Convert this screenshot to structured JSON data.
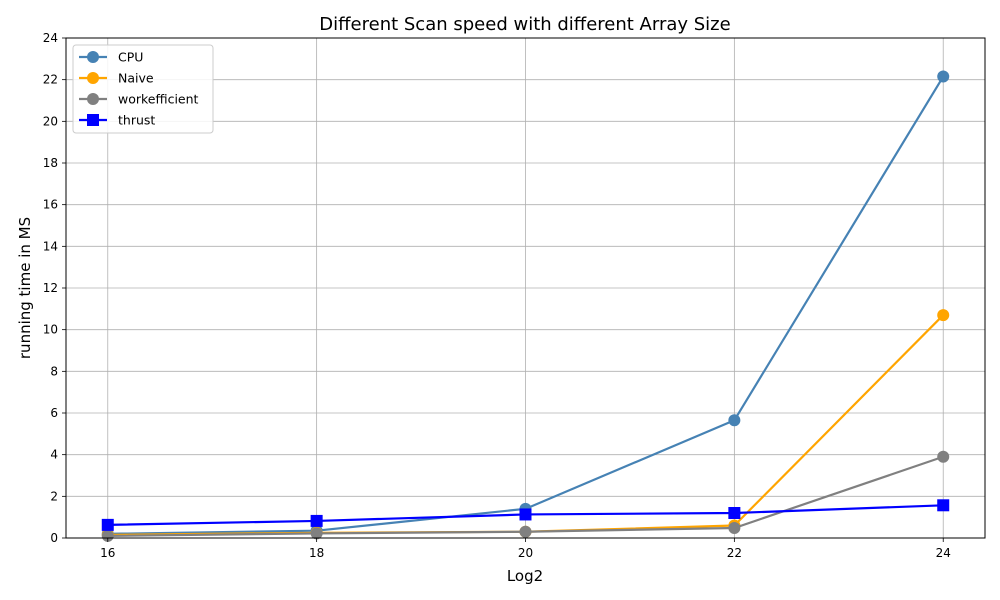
{
  "chart_data": {
    "type": "line",
    "title": "Different Scan speed with different Array Size",
    "xlabel": "Log2",
    "ylabel": "running time in MS",
    "x": [
      16,
      18,
      20,
      22,
      24
    ],
    "xticks": [
      16,
      18,
      20,
      22,
      24
    ],
    "xlim": [
      15.6,
      24.4
    ],
    "ylim": [
      0,
      24
    ],
    "yticks": [
      0,
      2,
      4,
      6,
      8,
      10,
      12,
      14,
      16,
      18,
      20,
      22,
      24
    ],
    "grid": true,
    "legend_position": "top-left",
    "series": [
      {
        "name": "CPU",
        "color": "#4682b4",
        "marker": "circle",
        "values": [
          0.2,
          0.35,
          1.4,
          5.65,
          22.15
        ]
      },
      {
        "name": "Naive",
        "color": "#ffa500",
        "marker": "circle",
        "values": [
          0.15,
          0.25,
          0.3,
          0.6,
          10.7
        ]
      },
      {
        "name": "workefficient",
        "color": "#808080",
        "marker": "circle",
        "values": [
          0.1,
          0.22,
          0.3,
          0.48,
          3.9
        ]
      },
      {
        "name": "thrust",
        "color": "#0000ff",
        "marker": "square",
        "values": [
          0.63,
          0.82,
          1.13,
          1.2,
          1.57
        ]
      }
    ]
  }
}
